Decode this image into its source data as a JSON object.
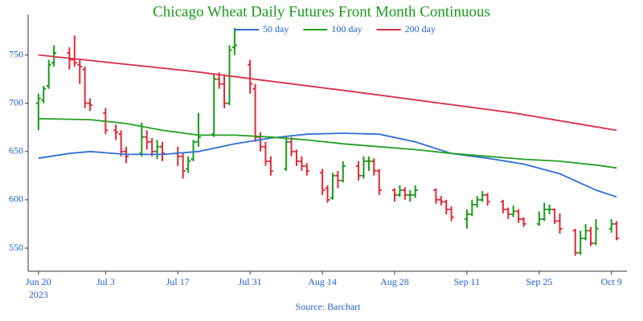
{
  "chart_data": {
    "type": "ohlc",
    "title": "Chicago Wheat Daily Futures Front Month Continuous",
    "source": "Source: Barchart",
    "up_color": "#1a9a1a",
    "down_color": "#e02a3a",
    "x": [
      "2023-06-20",
      "2023-06-21",
      "2023-06-22",
      "2023-06-23",
      "2023-06-26",
      "2023-06-27",
      "2023-06-28",
      "2023-06-29",
      "2023-06-30",
      "2023-07-03",
      "2023-07-05",
      "2023-07-06",
      "2023-07-07",
      "2023-07-10",
      "2023-07-11",
      "2023-07-12",
      "2023-07-13",
      "2023-07-14",
      "2023-07-17",
      "2023-07-18",
      "2023-07-19",
      "2023-07-20",
      "2023-07-21",
      "2023-07-24",
      "2023-07-25",
      "2023-07-26",
      "2023-07-27",
      "2023-07-28",
      "2023-07-31",
      "2023-08-01",
      "2023-08-02",
      "2023-08-03",
      "2023-08-04",
      "2023-08-07",
      "2023-08-08",
      "2023-08-09",
      "2023-08-10",
      "2023-08-11",
      "2023-08-14",
      "2023-08-15",
      "2023-08-16",
      "2023-08-17",
      "2023-08-18",
      "2023-08-21",
      "2023-08-22",
      "2023-08-23",
      "2023-08-24",
      "2023-08-25",
      "2023-08-28",
      "2023-08-29",
      "2023-08-30",
      "2023-08-31",
      "2023-09-01",
      "2023-09-05",
      "2023-09-06",
      "2023-09-07",
      "2023-09-08",
      "2023-09-11",
      "2023-09-12",
      "2023-09-13",
      "2023-09-14",
      "2023-09-15",
      "2023-09-18",
      "2023-09-19",
      "2023-09-20",
      "2023-09-21",
      "2023-09-22",
      "2023-09-25",
      "2023-09-26",
      "2023-09-27",
      "2023-09-28",
      "2023-09-29",
      "2023-10-02",
      "2023-10-03",
      "2023-10-04",
      "2023-10-05",
      "2023-10-06",
      "2023-10-09",
      "2023-10-10"
    ],
    "open": [
      700,
      703,
      718,
      742,
      752,
      745,
      740,
      735,
      700,
      690,
      672,
      668,
      650,
      648,
      665,
      660,
      650,
      655,
      648,
      645,
      632,
      642,
      660,
      668,
      725,
      720,
      700,
      758,
      740,
      715,
      665,
      655,
      640,
      632,
      660,
      650,
      640,
      635,
      628,
      612,
      602,
      625,
      620,
      635,
      625,
      640,
      640,
      630,
      610,
      605,
      610,
      605,
      605,
      610,
      600,
      598,
      590,
      580,
      585,
      595,
      600,
      605,
      598,
      590,
      585,
      588,
      580,
      575,
      580,
      590,
      590,
      578,
      568,
      545,
      560,
      568,
      555,
      570,
      575
    ],
    "high": [
      710,
      718,
      745,
      760,
      758,
      770,
      745,
      738,
      705,
      695,
      678,
      672,
      655,
      680,
      672,
      664,
      662,
      660,
      655,
      648,
      645,
      662,
      690,
      730,
      732,
      730,
      760,
      778,
      745,
      720,
      670,
      660,
      645,
      665,
      665,
      652,
      645,
      638,
      632,
      615,
      628,
      630,
      640,
      640,
      645,
      645,
      643,
      632,
      612,
      615,
      613,
      610,
      615,
      612,
      604,
      600,
      593,
      590,
      600,
      604,
      609,
      607,
      600,
      592,
      594,
      590,
      582,
      588,
      597,
      595,
      591,
      586,
      570,
      568,
      575,
      572,
      580,
      580,
      578
    ],
    "low": [
      672,
      700,
      715,
      738,
      735,
      738,
      720,
      695,
      692,
      668,
      662,
      645,
      638,
      645,
      652,
      645,
      642,
      640,
      635,
      622,
      628,
      640,
      655,
      665,
      715,
      695,
      698,
      750,
      710,
      660,
      650,
      635,
      625,
      630,
      645,
      635,
      630,
      625,
      605,
      597,
      600,
      612,
      618,
      620,
      622,
      630,
      625,
      605,
      598,
      603,
      600,
      598,
      602,
      596,
      594,
      585,
      578,
      570,
      583,
      592,
      598,
      594,
      586,
      580,
      582,
      576,
      572,
      573,
      578,
      585,
      575,
      565,
      542,
      543,
      558,
      552,
      553,
      566,
      558
    ],
    "close": [
      705,
      715,
      740,
      752,
      745,
      742,
      738,
      700,
      698,
      672,
      670,
      650,
      645,
      665,
      660,
      650,
      655,
      648,
      645,
      630,
      640,
      660,
      665,
      725,
      720,
      700,
      755,
      760,
      720,
      665,
      655,
      640,
      630,
      660,
      650,
      640,
      635,
      630,
      610,
      600,
      625,
      620,
      635,
      625,
      640,
      640,
      630,
      610,
      605,
      610,
      605,
      605,
      610,
      600,
      598,
      590,
      582,
      585,
      595,
      600,
      605,
      598,
      590,
      585,
      588,
      580,
      575,
      580,
      590,
      590,
      578,
      570,
      545,
      560,
      568,
      555,
      570,
      575,
      560
    ],
    "series": [
      {
        "name": "50 day",
        "color": "#2f6fd6",
        "x": [
          "2023-06-20",
          "2023-06-26",
          "2023-06-30",
          "2023-07-07",
          "2023-07-14",
          "2023-07-21",
          "2023-07-28",
          "2023-08-04",
          "2023-08-11",
          "2023-08-18",
          "2023-08-25",
          "2023-09-01",
          "2023-09-08",
          "2023-09-15",
          "2023-09-22",
          "2023-09-29",
          "2023-10-06",
          "2023-10-10"
        ],
        "values": [
          643,
          648,
          650,
          647,
          647,
          650,
          658,
          664,
          668,
          669,
          668,
          660,
          648,
          643,
          637,
          627,
          610,
          603
        ]
      },
      {
        "name": "100 day",
        "color": "#22a022",
        "x": [
          "2023-06-20",
          "2023-06-30",
          "2023-07-07",
          "2023-07-14",
          "2023-07-21",
          "2023-07-28",
          "2023-08-04",
          "2023-08-11",
          "2023-08-18",
          "2023-08-25",
          "2023-09-01",
          "2023-09-08",
          "2023-09-15",
          "2023-09-22",
          "2023-09-29",
          "2023-10-06",
          "2023-10-10"
        ],
        "values": [
          684,
          683,
          679,
          672,
          667,
          667,
          665,
          662,
          658,
          655,
          652,
          648,
          645,
          642,
          640,
          636,
          633
        ]
      },
      {
        "name": "200 day",
        "color": "#d6304a",
        "x": [
          "2023-06-20",
          "2023-07-20",
          "2023-08-20",
          "2023-09-20",
          "2023-10-10"
        ],
        "values": [
          750,
          733,
          712,
          690,
          672
        ]
      }
    ],
    "xlim": [
      "2023-06-18",
      "2023-10-12"
    ],
    "xticks": [
      {
        "value": "2023-06-20",
        "label": "Jun 20\n2023"
      },
      {
        "value": "2023-07-03",
        "label": "Jul 3"
      },
      {
        "value": "2023-07-17",
        "label": "Jul 17"
      },
      {
        "value": "2023-07-31",
        "label": "Jul 31"
      },
      {
        "value": "2023-08-14",
        "label": "Aug 14"
      },
      {
        "value": "2023-08-28",
        "label": "Aug 28"
      },
      {
        "value": "2023-09-11",
        "label": "Sep 11"
      },
      {
        "value": "2023-09-25",
        "label": "Sep 25"
      },
      {
        "value": "2023-10-09",
        "label": "Oct 9"
      }
    ],
    "ylim": [
      526,
      792
    ],
    "yticks": [
      550,
      600,
      650,
      700,
      750
    ]
  }
}
